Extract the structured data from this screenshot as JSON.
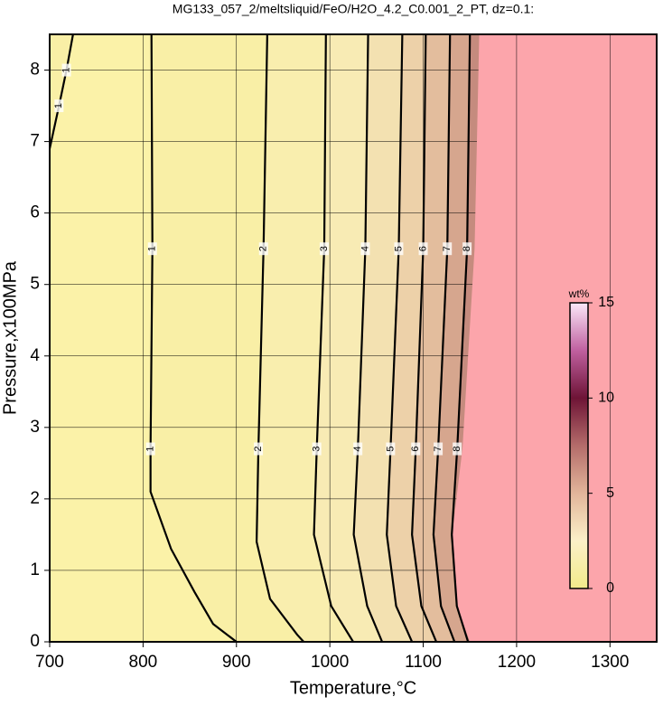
{
  "chart_data": {
    "type": "contour",
    "title": "MG133_057_2/meltsliquid/FeO/H2O_4.2_C0.001_2_PT, dz=0.1:",
    "xlabel": "Temperature,°C",
    "ylabel": "Pressure,x100MPa",
    "xlim": [
      700,
      1350
    ],
    "ylim": [
      0,
      8.5
    ],
    "xticks": [
      700,
      800,
      900,
      1000,
      1100,
      1200,
      1300
    ],
    "yticks": [
      0,
      1,
      2,
      3,
      4,
      5,
      6,
      7,
      8
    ],
    "grid": true,
    "background_color": "#fbf2a8",
    "nan_color": "#fca5ab",
    "contours": [
      {
        "level": 1,
        "x": [
          700,
          710,
          718,
          725
        ],
        "y": [
          6.9,
          7.5,
          8.0,
          8.5
        ]
      },
      {
        "level": 1,
        "x": [
          809,
          810,
          808,
          808,
          830,
          855,
          875,
          900
        ],
        "y": [
          8.5,
          5.5,
          2.7,
          2.1,
          1.3,
          0.7,
          0.25,
          0
        ]
      },
      {
        "level": 2,
        "x": [
          933,
          929,
          923.5,
          921.6,
          936,
          965,
          972
        ],
        "y": [
          8.5,
          5.5,
          2.7,
          1.4,
          0.6,
          0.1,
          0
        ]
      },
      {
        "level": 3,
        "x": [
          995.8,
          994,
          986,
          983,
          1001.5,
          1025
        ],
        "y": [
          8.5,
          5.5,
          2.7,
          1.5,
          0.5,
          0
        ]
      },
      {
        "level": 4,
        "x": [
          1041,
          1038,
          1030,
          1025.6,
          1040,
          1056
        ],
        "y": [
          8.5,
          5.5,
          2.7,
          1.5,
          0.5,
          0
        ]
      },
      {
        "level": 5,
        "x": [
          1077.6,
          1073.8,
          1065,
          1061,
          1071,
          1088
        ],
        "y": [
          8.5,
          5.5,
          2.7,
          1.5,
          0.5,
          0
        ]
      },
      {
        "level": 6,
        "x": [
          1102.7,
          1100,
          1092,
          1088,
          1098,
          1114
        ],
        "y": [
          8.5,
          5.5,
          2.7,
          1.5,
          0.5,
          0
        ]
      },
      {
        "level": 7,
        "x": [
          1128.7,
          1125.8,
          1116,
          1111,
          1119,
          1133.5
        ],
        "y": [
          8.5,
          5.5,
          2.7,
          1.5,
          0.5,
          0
        ]
      },
      {
        "level": 8,
        "x": [
          1150,
          1147,
          1136.4,
          1130.6,
          1136,
          1148
        ],
        "y": [
          8.5,
          5.5,
          2.7,
          1.5,
          0.5,
          0
        ]
      }
    ],
    "nan_boundary": {
      "x": [
        1160,
        1155,
        1142,
        1130,
        1136,
        1150
      ],
      "y": [
        8.5,
        5.5,
        2.7,
        1.4,
        0.5,
        0
      ]
    },
    "colorbar": {
      "label": "wt%",
      "lim": [
        0,
        15
      ],
      "ticks": [
        0,
        5,
        10,
        15
      ],
      "colors": [
        "#f2ea8a",
        "#fbf0c8",
        "#e2b59a",
        "#b46c6a",
        "#6e1436",
        "#c060a0",
        "#fbe8f8"
      ]
    }
  }
}
